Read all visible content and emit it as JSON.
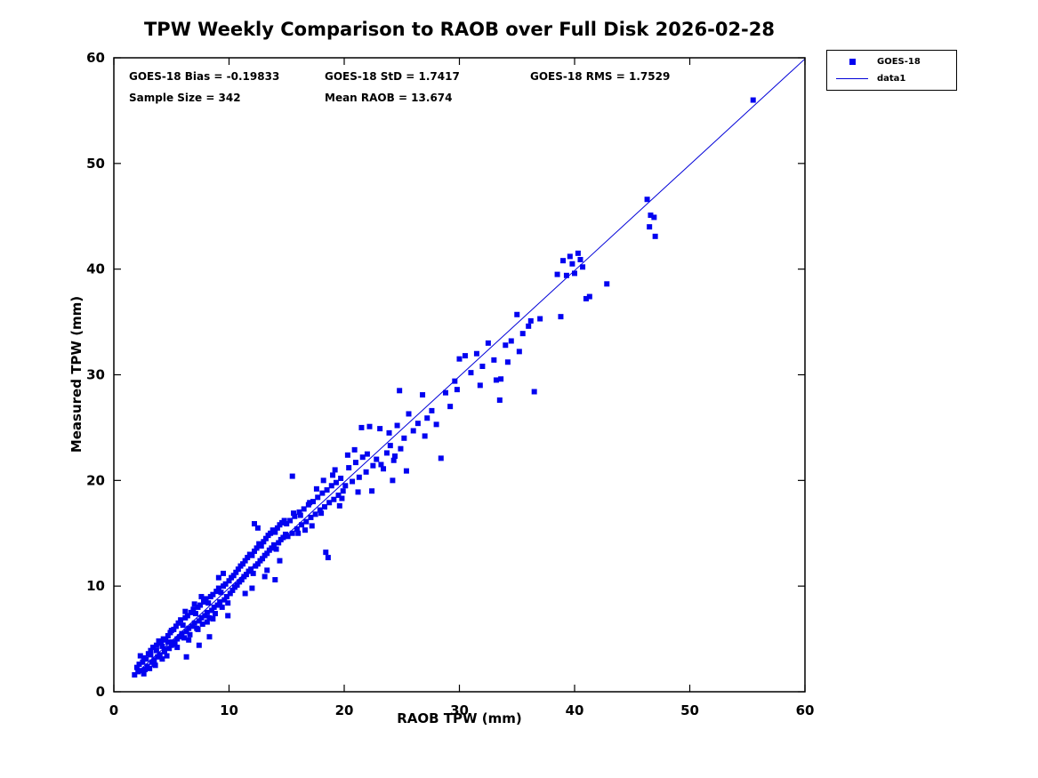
{
  "annotations": {
    "bias": "GOES-18 Bias = -0.19833",
    "std": "GOES-18 StD = 1.7417",
    "rms": "GOES-18 RMS = 1.7529",
    "sample_size": "Sample Size = 342",
    "mean_raob": "Mean RAOB = 13.674"
  },
  "legend": {
    "entries": [
      {
        "label": "GOES-18",
        "type": "marker"
      },
      {
        "label": "data1",
        "type": "line"
      }
    ]
  },
  "chart_data": {
    "type": "scatter",
    "title": "TPW Weekly Comparison to RAOB over Full Disk 2026-02-28",
    "xlabel": "RAOB TPW (mm)",
    "ylabel": "Measured TPW (mm)",
    "xlim": [
      0,
      60
    ],
    "ylim": [
      0,
      60
    ],
    "xticks": [
      0,
      10,
      20,
      30,
      40,
      50,
      60
    ],
    "yticks": [
      0,
      10,
      20,
      30,
      40,
      50,
      60
    ],
    "grid": false,
    "legend_position": "outside-top-right",
    "colors": {
      "marker": "#0202f0",
      "line": "#0202d8",
      "axis": "#000000"
    },
    "stats": {
      "bias": -0.19833,
      "std": 1.7417,
      "rms": 1.7529,
      "sample_size": 342,
      "mean_raob": 13.674
    },
    "fit_line": {
      "name": "data1",
      "x": [
        1.8,
        60.0
      ],
      "y": [
        1.6,
        59.9
      ]
    },
    "series": [
      {
        "name": "GOES-18",
        "marker": "square",
        "points": [
          [
            1.8,
            1.6
          ],
          [
            2.0,
            2.3
          ],
          [
            2.1,
            1.9
          ],
          [
            2.3,
            3.4
          ],
          [
            2.4,
            2.0
          ],
          [
            2.5,
            2.8
          ],
          [
            2.6,
            1.7
          ],
          [
            2.8,
            3.1
          ],
          [
            2.9,
            2.4
          ],
          [
            3.0,
            3.6
          ],
          [
            3.1,
            2.2
          ],
          [
            3.2,
            3.9
          ],
          [
            3.3,
            2.8
          ],
          [
            3.4,
            4.2
          ],
          [
            3.5,
            3.0
          ],
          [
            3.6,
            2.5
          ],
          [
            3.7,
            4.4
          ],
          [
            3.8,
            3.3
          ],
          [
            3.9,
            4.8
          ],
          [
            4.0,
            3.5
          ],
          [
            4.1,
            4.6
          ],
          [
            4.2,
            3.1
          ],
          [
            4.3,
            5.0
          ],
          [
            4.4,
            3.8
          ],
          [
            4.5,
            4.9
          ],
          [
            4.6,
            3.4
          ],
          [
            4.7,
            5.3
          ],
          [
            4.8,
            4.1
          ],
          [
            4.9,
            5.6
          ],
          [
            5.0,
            4.4
          ],
          [
            2.2,
            2.6
          ],
          [
            2.7,
            2.1
          ],
          [
            3.2,
            3.5
          ],
          [
            3.7,
            3.9
          ],
          [
            4.2,
            4.3
          ],
          [
            4.7,
            4.7
          ],
          [
            5.0,
            5.8
          ],
          [
            3.5,
            2.6
          ],
          [
            2.6,
            3.2
          ],
          [
            4.4,
            4.0
          ],
          [
            5.1,
            4.7
          ],
          [
            5.2,
            5.9
          ],
          [
            5.3,
            4.5
          ],
          [
            5.4,
            6.2
          ],
          [
            5.5,
            5.0
          ],
          [
            5.6,
            6.5
          ],
          [
            5.7,
            5.2
          ],
          [
            5.8,
            6.8
          ],
          [
            5.9,
            5.5
          ],
          [
            6.0,
            6.3
          ],
          [
            6.1,
            5.1
          ],
          [
            6.2,
            7.0
          ],
          [
            6.3,
            5.7
          ],
          [
            6.4,
            7.2
          ],
          [
            6.5,
            6.0
          ],
          [
            6.6,
            5.4
          ],
          [
            6.7,
            7.5
          ],
          [
            6.8,
            6.2
          ],
          [
            6.9,
            7.8
          ],
          [
            7.0,
            6.5
          ],
          [
            7.1,
            7.4
          ],
          [
            7.2,
            6.0
          ],
          [
            7.3,
            8.0
          ],
          [
            7.4,
            6.7
          ],
          [
            7.5,
            8.2
          ],
          [
            7.6,
            7.0
          ],
          [
            7.7,
            6.4
          ],
          [
            7.8,
            8.5
          ],
          [
            7.9,
            7.2
          ],
          [
            8.0,
            8.8
          ],
          [
            8.1,
            7.5
          ],
          [
            8.2,
            8.4
          ],
          [
            8.3,
            7.0
          ],
          [
            8.4,
            9.0
          ],
          [
            8.5,
            7.7
          ],
          [
            8.6,
            9.2
          ],
          [
            8.7,
            8.0
          ],
          [
            8.8,
            7.4
          ],
          [
            8.9,
            9.5
          ],
          [
            9.0,
            8.2
          ],
          [
            9.1,
            9.8
          ],
          [
            9.2,
            8.5
          ],
          [
            9.3,
            9.4
          ],
          [
            9.4,
            8.0
          ],
          [
            9.5,
            10.0
          ],
          [
            9.6,
            8.7
          ],
          [
            9.7,
            10.2
          ],
          [
            9.8,
            9.0
          ],
          [
            9.9,
            8.4
          ],
          [
            10.0,
            10.5
          ],
          [
            6.5,
            4.9
          ],
          [
            7.3,
            5.9
          ],
          [
            8.6,
            6.9
          ],
          [
            9.5,
            11.2
          ],
          [
            5.5,
            4.2
          ],
          [
            7.0,
            8.3
          ],
          [
            8.1,
            6.6
          ],
          [
            9.1,
            10.8
          ],
          [
            7.6,
            9.0
          ],
          [
            6.2,
            7.6
          ],
          [
            6.3,
            3.3
          ],
          [
            7.4,
            4.4
          ],
          [
            8.3,
            5.2
          ],
          [
            9.9,
            7.2
          ],
          [
            10.1,
            9.3
          ],
          [
            10.2,
            10.8
          ],
          [
            10.3,
            9.6
          ],
          [
            10.4,
            11.0
          ],
          [
            10.5,
            9.9
          ],
          [
            10.6,
            11.3
          ],
          [
            10.7,
            10.1
          ],
          [
            10.8,
            11.6
          ],
          [
            10.9,
            10.4
          ],
          [
            11.0,
            11.9
          ],
          [
            11.1,
            10.6
          ],
          [
            11.2,
            12.1
          ],
          [
            11.3,
            10.9
          ],
          [
            11.4,
            12.4
          ],
          [
            11.5,
            11.1
          ],
          [
            11.6,
            12.7
          ],
          [
            11.7,
            11.4
          ],
          [
            11.8,
            13.0
          ],
          [
            11.9,
            11.6
          ],
          [
            12.0,
            12.9
          ],
          [
            12.1,
            11.2
          ],
          [
            12.2,
            13.3
          ],
          [
            12.3,
            11.9
          ],
          [
            12.4,
            13.6
          ],
          [
            12.5,
            12.1
          ],
          [
            12.6,
            14.0
          ],
          [
            12.7,
            12.4
          ],
          [
            12.8,
            13.8
          ],
          [
            12.9,
            12.6
          ],
          [
            13.0,
            14.2
          ],
          [
            13.1,
            12.9
          ],
          [
            13.2,
            14.5
          ],
          [
            13.3,
            13.1
          ],
          [
            13.4,
            14.8
          ],
          [
            13.5,
            13.4
          ],
          [
            13.6,
            15.0
          ],
          [
            13.7,
            13.6
          ],
          [
            13.8,
            15.3
          ],
          [
            13.9,
            13.9
          ],
          [
            14.0,
            15.1
          ],
          [
            14.1,
            13.5
          ],
          [
            14.2,
            15.5
          ],
          [
            14.3,
            14.1
          ],
          [
            14.4,
            15.8
          ],
          [
            14.5,
            14.4
          ],
          [
            14.6,
            16.0
          ],
          [
            14.7,
            14.6
          ],
          [
            14.8,
            16.2
          ],
          [
            14.9,
            14.9
          ],
          [
            15.0,
            15.9
          ],
          [
            12.2,
            15.9
          ],
          [
            12.5,
            15.5
          ],
          [
            13.1,
            10.9
          ],
          [
            14.0,
            10.6
          ],
          [
            12.0,
            9.8
          ],
          [
            11.4,
            9.3
          ],
          [
            13.3,
            11.5
          ],
          [
            14.4,
            12.4
          ],
          [
            15.1,
            14.7
          ],
          [
            15.3,
            16.2
          ],
          [
            15.5,
            15.0
          ],
          [
            15.7,
            16.6
          ],
          [
            15.9,
            15.4
          ],
          [
            16.1,
            17.0
          ],
          [
            16.3,
            15.8
          ],
          [
            16.5,
            17.3
          ],
          [
            16.7,
            16.1
          ],
          [
            16.9,
            17.7
          ],
          [
            17.1,
            16.5
          ],
          [
            17.3,
            18.0
          ],
          [
            17.5,
            16.8
          ],
          [
            17.7,
            18.4
          ],
          [
            17.9,
            17.2
          ],
          [
            18.1,
            18.8
          ],
          [
            18.3,
            17.5
          ],
          [
            18.5,
            19.1
          ],
          [
            18.7,
            17.9
          ],
          [
            18.9,
            19.5
          ],
          [
            19.1,
            18.2
          ],
          [
            19.3,
            19.8
          ],
          [
            19.5,
            18.6
          ],
          [
            19.7,
            20.2
          ],
          [
            19.9,
            19.0
          ],
          [
            16.0,
            15.0
          ],
          [
            17.0,
            17.9
          ],
          [
            18.0,
            16.9
          ],
          [
            19.0,
            20.5
          ],
          [
            15.6,
            16.9
          ],
          [
            16.6,
            15.3
          ],
          [
            17.6,
            19.2
          ],
          [
            18.6,
            12.7
          ],
          [
            18.4,
            13.2
          ],
          [
            19.6,
            17.6
          ],
          [
            18.2,
            20.0
          ],
          [
            19.2,
            21.0
          ],
          [
            16.2,
            16.7
          ],
          [
            17.2,
            15.7
          ],
          [
            19.8,
            18.3
          ],
          [
            15.5,
            20.4
          ],
          [
            20.1,
            19.5
          ],
          [
            20.4,
            21.2
          ],
          [
            20.7,
            19.9
          ],
          [
            21.0,
            21.7
          ],
          [
            21.3,
            20.3
          ],
          [
            21.6,
            22.2
          ],
          [
            21.9,
            20.8
          ],
          [
            22.2,
            25.1
          ],
          [
            22.5,
            21.4
          ],
          [
            22.8,
            22.0
          ],
          [
            23.1,
            24.9
          ],
          [
            23.4,
            21.1
          ],
          [
            23.7,
            22.6
          ],
          [
            24.0,
            23.3
          ],
          [
            24.3,
            21.9
          ],
          [
            24.6,
            25.2
          ],
          [
            24.9,
            23.0
          ],
          [
            20.3,
            22.4
          ],
          [
            21.2,
            18.9
          ],
          [
            22.4,
            19.0
          ],
          [
            23.2,
            21.5
          ],
          [
            24.2,
            20.0
          ],
          [
            24.8,
            28.5
          ],
          [
            20.9,
            22.9
          ],
          [
            23.9,
            24.5
          ],
          [
            22.0,
            22.5
          ],
          [
            21.5,
            25.0
          ],
          [
            24.4,
            22.3
          ],
          [
            25.2,
            24.0
          ],
          [
            25.6,
            26.3
          ],
          [
            26.0,
            24.7
          ],
          [
            26.4,
            25.4
          ],
          [
            26.8,
            28.1
          ],
          [
            27.2,
            25.9
          ],
          [
            27.6,
            26.6
          ],
          [
            28.0,
            25.3
          ],
          [
            28.4,
            22.1
          ],
          [
            28.8,
            28.3
          ],
          [
            29.2,
            27.0
          ],
          [
            29.6,
            29.4
          ],
          [
            30.0,
            31.5
          ],
          [
            25.4,
            20.9
          ],
          [
            27.0,
            24.2
          ],
          [
            29.8,
            28.6
          ],
          [
            30.5,
            31.8
          ],
          [
            31.0,
            30.2
          ],
          [
            31.5,
            32.0
          ],
          [
            32.0,
            30.8
          ],
          [
            32.5,
            33.0
          ],
          [
            33.0,
            31.4
          ],
          [
            33.5,
            27.6
          ],
          [
            34.0,
            32.8
          ],
          [
            34.5,
            33.2
          ],
          [
            35.0,
            35.7
          ],
          [
            35.5,
            33.9
          ],
          [
            36.0,
            34.6
          ],
          [
            36.5,
            28.4
          ],
          [
            37.0,
            35.3
          ],
          [
            31.8,
            29.0
          ],
          [
            33.2,
            29.5
          ],
          [
            34.2,
            31.2
          ],
          [
            36.2,
            35.1
          ],
          [
            35.2,
            32.2
          ],
          [
            33.6,
            29.6
          ],
          [
            38.5,
            39.5
          ],
          [
            39.0,
            40.8
          ],
          [
            39.3,
            39.4
          ],
          [
            39.6,
            41.2
          ],
          [
            40.0,
            39.6
          ],
          [
            40.3,
            41.5
          ],
          [
            40.7,
            40.2
          ],
          [
            41.0,
            37.2
          ],
          [
            41.3,
            37.4
          ],
          [
            42.8,
            38.6
          ],
          [
            39.8,
            40.5
          ],
          [
            40.5,
            40.9
          ],
          [
            38.8,
            35.5
          ],
          [
            46.3,
            46.6
          ],
          [
            46.6,
            45.1
          ],
          [
            46.9,
            44.9
          ],
          [
            47.0,
            43.1
          ],
          [
            46.5,
            44.0
          ],
          [
            55.5,
            56.0
          ]
        ]
      }
    ]
  }
}
